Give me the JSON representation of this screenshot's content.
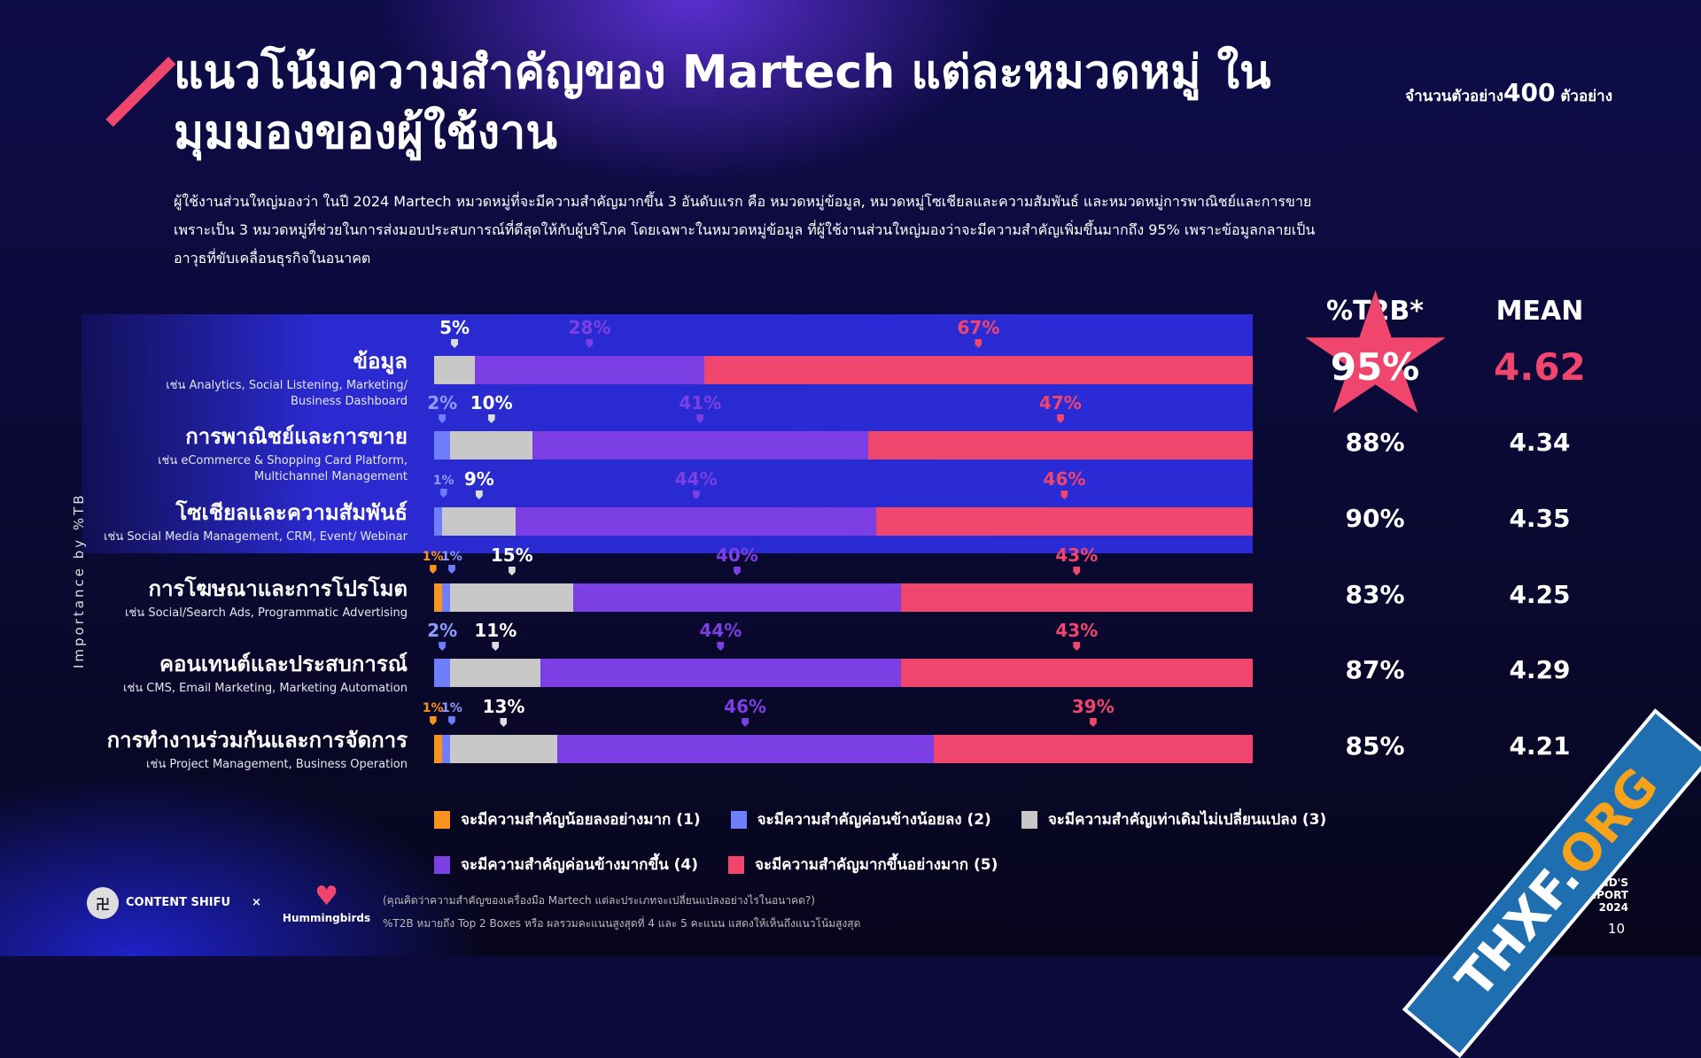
{
  "title": "แนวโน้มความสำคัญของ Martech แต่ละหมวดหมู่ ในมุมมองของผู้ใช้งาน",
  "sample": {
    "prefix": "จำนวนตัวอย่าง",
    "count": "400",
    "suffix": "ตัวอย่าง"
  },
  "description": "ผู้ใช้งานส่วนใหญ่มองว่า ในปี 2024 Martech หมวดหมู่ที่จะมีความสำคัญมากขึ้น 3 อันดับแรก คือ หมวดหมู่ข้อมูล, หมวดหมู่โซเชียลและความสัมพันธ์ และหมวดหมู่การพาณิชย์และการขาย เพราะเป็น 3 หมวดหมู่ที่ช่วยในการส่งมอบประสบการณ์ที่ดีสุดให้กับผู้บริโภค โดยเฉพาะในหมวดหมู่ข้อมูล ที่ผู้ใช้งานส่วนใหญ่มองว่าจะมีความสำคัญเพิ่มขึ้นมากถึง 95% เพราะข้อมูลกลายเป็นอาวุธที่ขับเคลื่อนธุรกิจในอนาคต",
  "y_axis_label": "Importance by %TB",
  "headers": {
    "t2b": "%T2B*",
    "mean": "MEAN"
  },
  "chart_data": {
    "type": "bar",
    "orientation": "horizontal",
    "stacked": true,
    "xlim": [
      0,
      100
    ],
    "colors": [
      "#f7941d",
      "#6f7dff",
      "#c8c8c8",
      "#7b3fe4",
      "#f0466e"
    ],
    "series_names": [
      "จะมีความสำคัญน้อยลงอย่างมาก (1)",
      "จะมีความสำคัญค่อนข้างน้อยลง (2)",
      "จะมีความสำคัญเท่าเดิมไม่เปลี่ยนแปลง (3)",
      "จะมีความสำคัญค่อนข้างมากขึ้น (4)",
      "จะมีความสำคัญมากขึ้นอย่างมาก (5)"
    ],
    "rows": [
      {
        "name": "ข้อมูล",
        "sub": [
          "เช่น Analytics, Social Listening, Marketing/",
          "Business Dashboard"
        ],
        "values": [
          0,
          0,
          5,
          28,
          67
        ],
        "t2b": "95%",
        "mean": "4.62",
        "highlight": true
      },
      {
        "name": "การพาณิชย์และการขาย",
        "sub": [
          "เช่น eCommerce & Shopping Card Platform,",
          "Multichannel Management"
        ],
        "values": [
          0,
          2,
          10,
          41,
          47
        ],
        "t2b": "88%",
        "mean": "4.34",
        "highlight": true
      },
      {
        "name": "โซเชียลและความสัมพันธ์",
        "sub": [
          "เช่น Social Media Management, CRM, Event/ Webinar"
        ],
        "values": [
          0,
          1,
          9,
          44,
          46
        ],
        "t2b": "90%",
        "mean": "4.35",
        "highlight": true
      },
      {
        "name": "การโฆษณาและการโปรโมต",
        "sub": [
          "เช่น Social/Search Ads, Programmatic Advertising"
        ],
        "values": [
          1,
          1,
          15,
          40,
          43
        ],
        "t2b": "83%",
        "mean": "4.25"
      },
      {
        "name": "คอนเทนต์และประสบการณ์",
        "sub": [
          "เช่น CMS, Email Marketing, Marketing Automation"
        ],
        "values": [
          0,
          2,
          11,
          44,
          43
        ],
        "t2b": "87%",
        "mean": "4.29"
      },
      {
        "name": "การทำงานร่วมกันและการจัดการ",
        "sub": [
          "เช่น Project Management, Business Operation"
        ],
        "values": [
          1,
          1,
          13,
          46,
          39
        ],
        "t2b": "85%",
        "mean": "4.21"
      }
    ]
  },
  "footnotes": [
    "(คุณคิดว่าความสำคัญของเครื่องมือ Martech แต่ละประเภทจะเปลี่ยนแปลงอย่างไรในอนาคต?)",
    "%T2B หมายถึง Top 2 Boxes หรือ ผลรวมคะแนนสูงสุดที่ 4 และ 5 คะแนน แสดงให้เห็นถึงแนวโน้มสูงสุด"
  ],
  "logos": {
    "content_shifu": "CONTENT SHIFU",
    "x": "×",
    "hummingbirds": "Hummingbirds"
  },
  "report": [
    "ND'S",
    "EPORT",
    "2024"
  ],
  "page_number": "10",
  "watermark": {
    "a": "THXF.",
    "b": "ORG"
  }
}
